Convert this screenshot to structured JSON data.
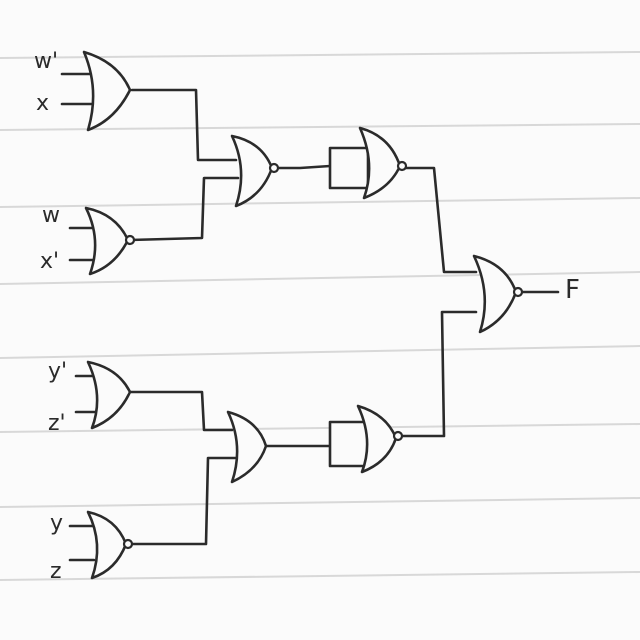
{
  "inputs": {
    "w_prime": "w'",
    "x": "x",
    "w": "w",
    "x_prime": "x'",
    "y_prime": "y'",
    "z_prime": "z'",
    "y": "y",
    "z": "z"
  },
  "output": "F",
  "gates": [
    {
      "id": "g1",
      "type": "OR",
      "inputs": [
        "w'",
        "x"
      ]
    },
    {
      "id": "g2",
      "type": "OR",
      "inputs": [
        "w",
        "x'"
      ]
    },
    {
      "id": "g3",
      "type": "OR",
      "inputs": [
        "g1",
        "g2"
      ]
    },
    {
      "id": "g4",
      "type": "NOR",
      "inputs": [
        "g3",
        "g3"
      ]
    },
    {
      "id": "g5",
      "type": "OR",
      "inputs": [
        "y'",
        "z'"
      ]
    },
    {
      "id": "g6",
      "type": "NOR",
      "inputs": [
        "y",
        "z"
      ]
    },
    {
      "id": "g7",
      "type": "OR",
      "inputs": [
        "g5",
        "g6"
      ]
    },
    {
      "id": "g8",
      "type": "NOR",
      "inputs": [
        "g7",
        "g7"
      ]
    },
    {
      "id": "g9",
      "type": "NOR",
      "inputs": [
        "g4",
        "g8"
      ]
    }
  ]
}
